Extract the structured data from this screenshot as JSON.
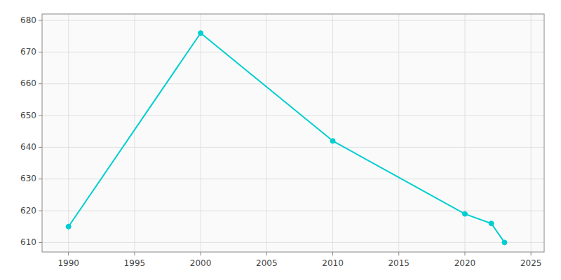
{
  "chart_data": {
    "type": "line",
    "x": [
      1990,
      2000,
      2010,
      2020,
      2022,
      2023
    ],
    "values": [
      615,
      676,
      642,
      619,
      616,
      610
    ],
    "color": "#00CED1",
    "marker": "circle",
    "xlim": [
      1988,
      2026
    ],
    "ylim": [
      607,
      682
    ],
    "xticks": [
      1990,
      1995,
      2000,
      2005,
      2010,
      2015,
      2020,
      2025
    ],
    "yticks": [
      610,
      620,
      630,
      640,
      650,
      660,
      670,
      680
    ],
    "grid": true
  }
}
